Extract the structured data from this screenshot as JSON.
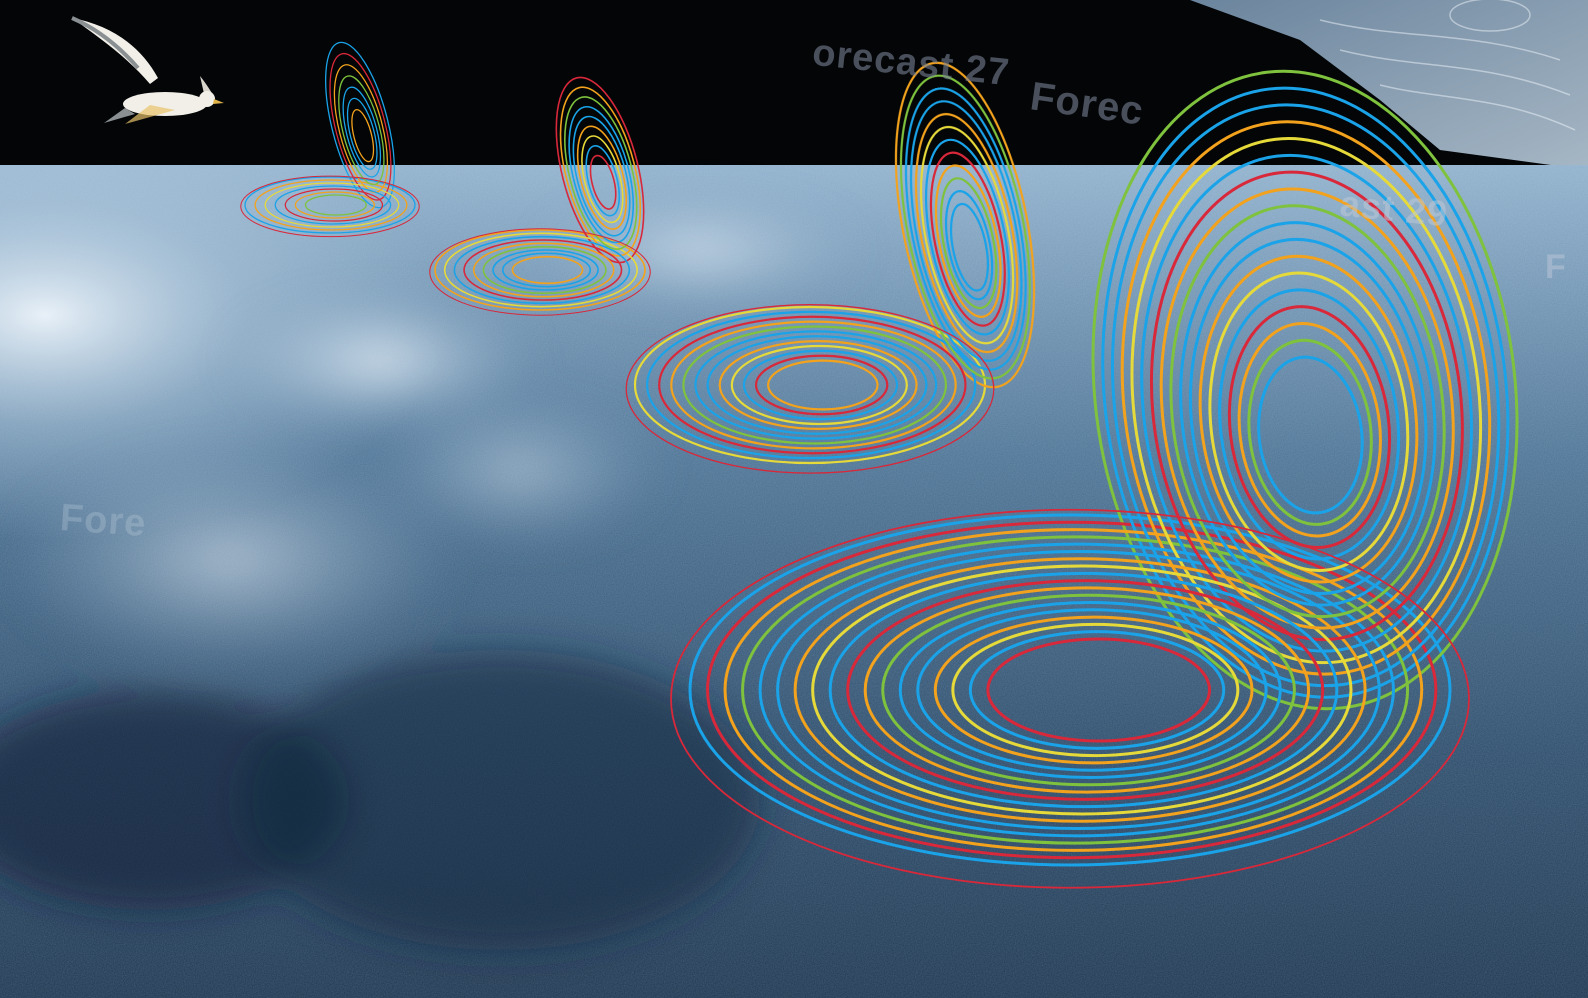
{
  "overlay_labels": {
    "label_1": "orecast 27",
    "label_2": "Forec",
    "label_3": "ast 29",
    "label_4": "Fore",
    "label_5": "F"
  },
  "colors": {
    "sky": "#030507",
    "sea_deep": "#1d3a57",
    "sea_light": "#9fbfd8",
    "foam": "#dfeaf3",
    "trace_blue": "#1aa3e8",
    "trace_orange": "#f2a21c",
    "trace_yellow": "#e6d93a",
    "trace_red": "#d8283a",
    "trace_green": "#7ec23d",
    "gull_white": "#f1efe8",
    "gull_wing_grey": "#8a8f92"
  },
  "icons": [
    "seagull-icon"
  ]
}
